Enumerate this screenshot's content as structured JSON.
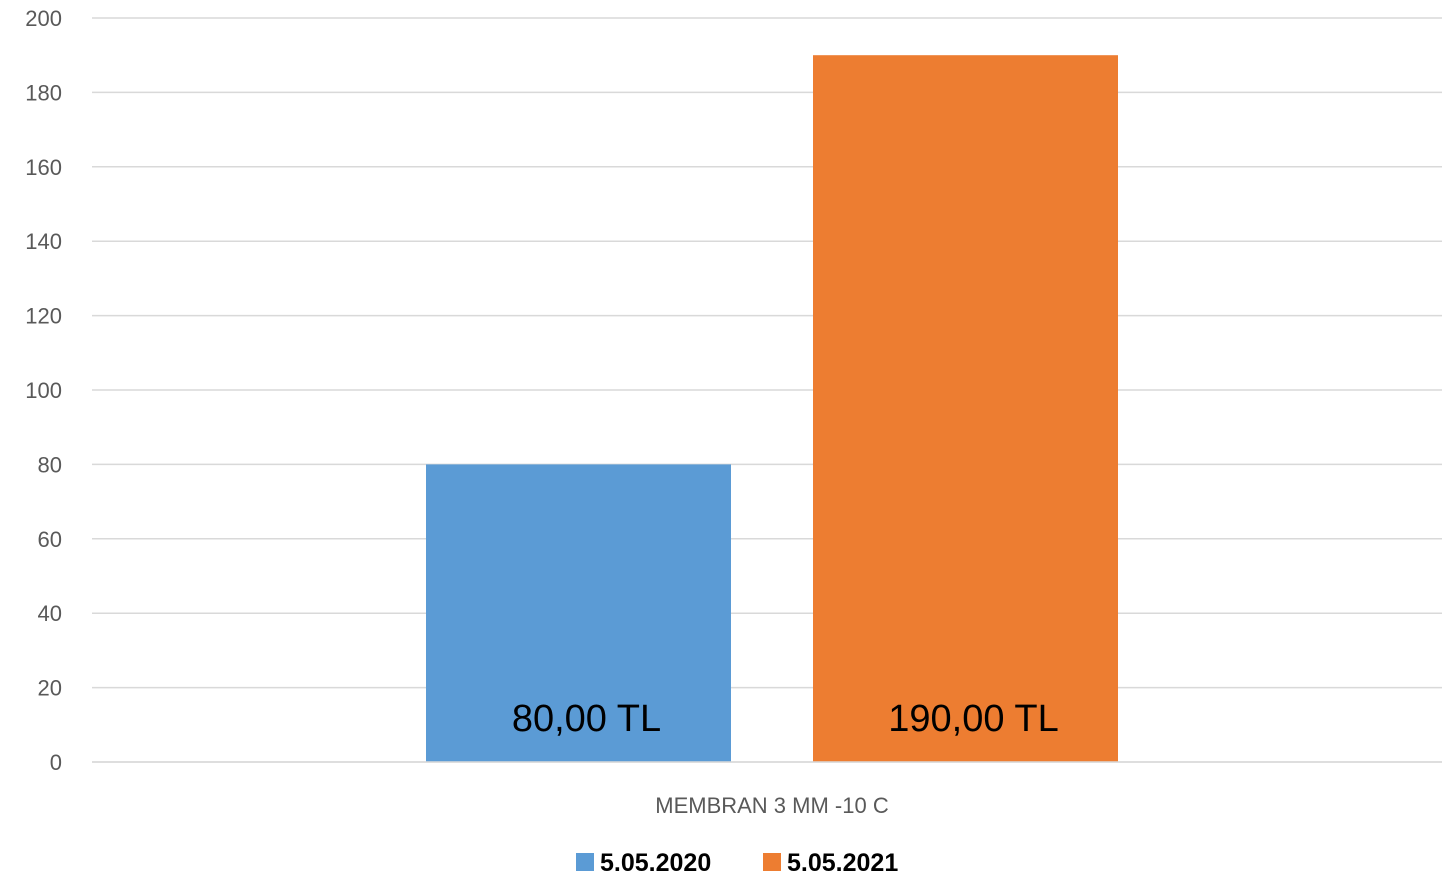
{
  "chart_data": {
    "type": "bar",
    "categories": [
      "MEMBRAN 3 MM -10 C"
    ],
    "series": [
      {
        "name": "5.05.2020",
        "values": [
          80
        ],
        "color": "#5B9BD5",
        "data_label": "80,00 TL"
      },
      {
        "name": "5.05.2021",
        "values": [
          190
        ],
        "color": "#ED7D31",
        "data_label": "190,00 TL"
      }
    ],
    "ylim": [
      0,
      200
    ],
    "yticks": [
      0,
      20,
      40,
      60,
      80,
      100,
      120,
      140,
      160,
      180,
      200
    ],
    "grid": true,
    "gridline_color": "#d9d9d9",
    "legend_position": "bottom"
  }
}
